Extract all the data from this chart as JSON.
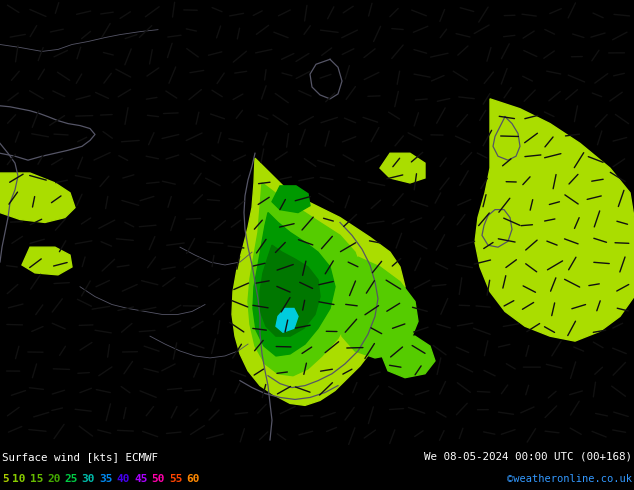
{
  "title_left": "Surface wind [kts] ECMWF",
  "title_right": "We 08-05-2024 00:00 UTC (00+168)",
  "copyright": "©weatheronline.co.uk",
  "legend_values": [
    "5",
    "10",
    "15",
    "20",
    "25",
    "30",
    "35",
    "40",
    "45",
    "50",
    "55",
    "60"
  ],
  "legend_colors": [
    "#aacc00",
    "#88cc00",
    "#66bb00",
    "#44aa00",
    "#00cc44",
    "#00bbaa",
    "#0088ff",
    "#4400ff",
    "#aa00ff",
    "#ff00aa",
    "#ff4400",
    "#ff8800"
  ],
  "bg_color": "#e8d800",
  "light_green": "#aadd00",
  "mid_green": "#55cc00",
  "dark_green": "#009900",
  "darker_green": "#007700",
  "cyan_color": "#00ccdd",
  "coast_color": "#555566",
  "barb_color": "#111111",
  "figsize": [
    6.34,
    4.9
  ],
  "dpi": 100
}
